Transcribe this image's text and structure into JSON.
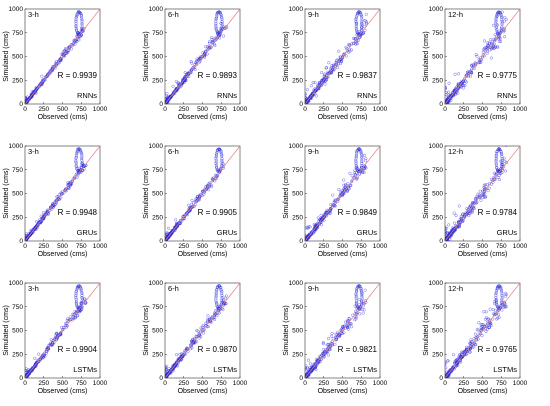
{
  "chart_data": {
    "type": "scatter",
    "xlabel": "Observed (cms)",
    "ylabel": "Simulated (cms)",
    "xlim": [
      0,
      1000
    ],
    "ylim": [
      0,
      1000
    ],
    "xticks": [
      "0",
      "250",
      "500",
      "750",
      "1000"
    ],
    "yticks": [
      "0",
      "250",
      "500",
      "750",
      "1000"
    ],
    "reference_line": "1:1",
    "colors": {
      "points": "#2a2adb",
      "reference_line": "#e88080"
    },
    "rows": [
      {
        "model": "RNNs",
        "panels": [
          {
            "lead": "3-h",
            "r_text": "R = 0.9939",
            "r": 0.9939
          },
          {
            "lead": "6-h",
            "r_text": "R = 0.9893",
            "r": 0.9893
          },
          {
            "lead": "9-h",
            "r_text": "R = 0.9837",
            "r": 0.9837
          },
          {
            "lead": "12-h",
            "r_text": "R = 0.9775",
            "r": 0.9775
          }
        ]
      },
      {
        "model": "GRUs",
        "panels": [
          {
            "lead": "3-h",
            "r_text": "R = 0.9948",
            "r": 0.9948
          },
          {
            "lead": "6-h",
            "r_text": "R = 0.9905",
            "r": 0.9905
          },
          {
            "lead": "9-h",
            "r_text": "R = 0.9849",
            "r": 0.9849
          },
          {
            "lead": "12-h",
            "r_text": "R = 0.9784",
            "r": 0.9784
          }
        ]
      },
      {
        "model": "LSTMs",
        "panels": [
          {
            "lead": "3-h",
            "r_text": "R = 0.9904",
            "r": 0.9904
          },
          {
            "lead": "6-h",
            "r_text": "R = 0.9870",
            "r": 0.987
          },
          {
            "lead": "9-h",
            "r_text": "R = 0.9821",
            "r": 0.9821
          },
          {
            "lead": "12-h",
            "r_text": "R = 0.9765",
            "r": 0.9765
          }
        ]
      }
    ]
  }
}
